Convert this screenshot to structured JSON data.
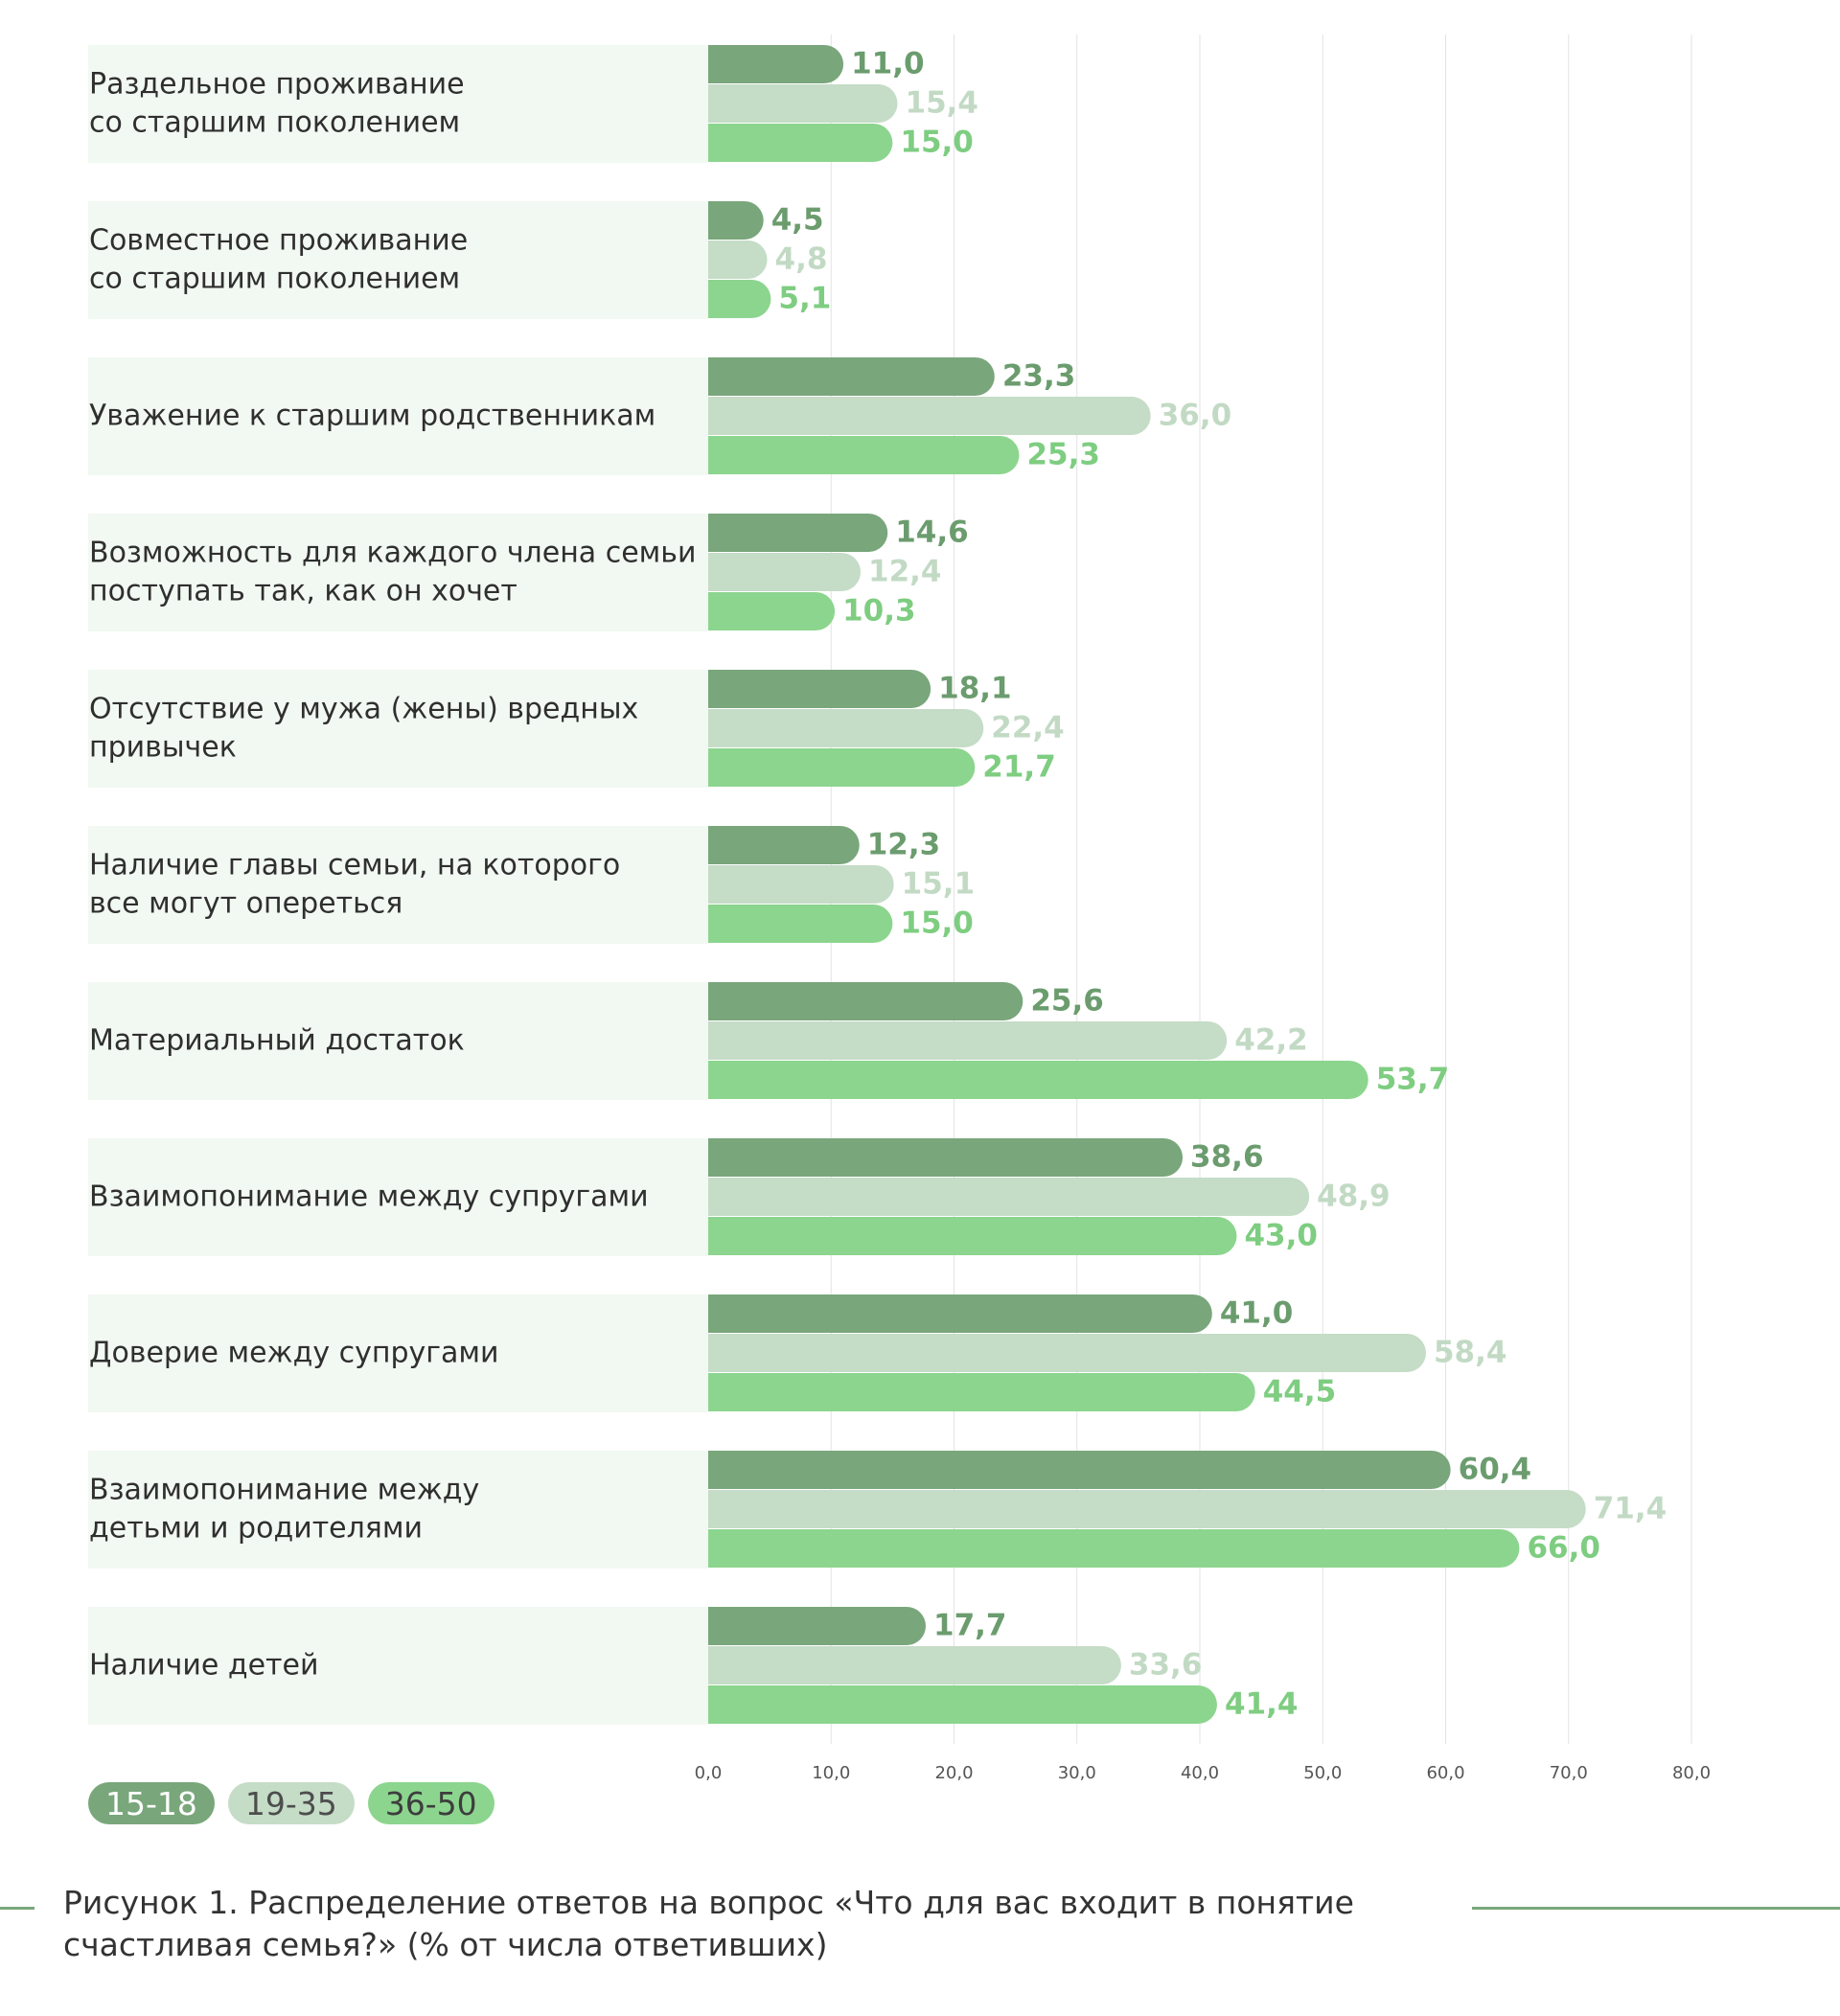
{
  "colors": {
    "s1": "#79a67b",
    "s2": "#c5dcc7",
    "s3": "#8cd58e",
    "panel": "#f2f8f2",
    "grid": "#e3e3e3"
  },
  "legend": [
    {
      "label": "15-18",
      "color": "#79a67b",
      "text_color": "#ffffff"
    },
    {
      "label": "19-35",
      "color": "#c5dcc7",
      "text_color": "#4d4d4d"
    },
    {
      "label": "36-50",
      "color": "#8cd58e",
      "text_color": "#3d3d3d"
    }
  ],
  "caption": "Рисунок 1. Распределение ответов на вопрос «Что для вас входит в понятие счастливая семья?» (% от числа ответивших)",
  "chart_data": {
    "type": "bar",
    "orientation": "horizontal",
    "categories": [
      [
        "Раздельное проживание",
        "со старшим поколением"
      ],
      [
        "Совместное проживание",
        "со старшим поколением"
      ],
      [
        "Уважение к старшим родственникам"
      ],
      [
        "Возможность для каждого члена семьи",
        "поступать так, как он хочет"
      ],
      [
        "Отсутствие у мужа (жены) вредных",
        "привычек"
      ],
      [
        "Наличие главы семьи, на которого",
        "все могут опереться"
      ],
      [
        "Материальный достаток"
      ],
      [
        "Взаимопонимание между супругами"
      ],
      [
        "Доверие между супругами"
      ],
      [
        "Взаимопонимание между",
        "детьми и родителями"
      ],
      [
        "Наличие детей"
      ]
    ],
    "series": [
      {
        "name": "15-18",
        "color": "#79a67b",
        "values": [
          11.0,
          4.5,
          23.3,
          14.6,
          18.1,
          12.3,
          25.6,
          38.6,
          41.0,
          60.4,
          17.7
        ],
        "labels": [
          "11,0",
          "4,5",
          "23,3",
          "14,6",
          "18,1",
          "12,3",
          "25,6",
          "38,6",
          "41,0",
          "60,4",
          "17,7"
        ]
      },
      {
        "name": "19-35",
        "color": "#c5dcc7",
        "values": [
          15.4,
          4.8,
          36.0,
          12.4,
          22.4,
          15.1,
          42.2,
          48.9,
          58.4,
          71.4,
          33.6
        ],
        "labels": [
          "15,4",
          "4,8",
          "36,0",
          "12,4",
          "22,4",
          "15,1",
          "42,2",
          "48,9",
          "58,4",
          "71,4",
          "33,6"
        ]
      },
      {
        "name": "36-50",
        "color": "#8cd58e",
        "values": [
          15.0,
          5.1,
          25.3,
          10.3,
          21.7,
          15.0,
          53.7,
          43.0,
          44.5,
          66.0,
          41.4
        ],
        "labels": [
          "15,0",
          "5,1",
          "25,3",
          "10,3",
          "21,7",
          "15,0",
          "53,7",
          "43,0",
          "44,5",
          "66,0",
          "41,4"
        ]
      }
    ],
    "xlim": [
      0,
      80
    ],
    "xticks": [
      "0,0",
      "10,0",
      "20,0",
      "30,0",
      "40,0",
      "50,0",
      "60,0",
      "70,0",
      "80,0"
    ],
    "grid": true,
    "legend_position": "bottom-left"
  }
}
